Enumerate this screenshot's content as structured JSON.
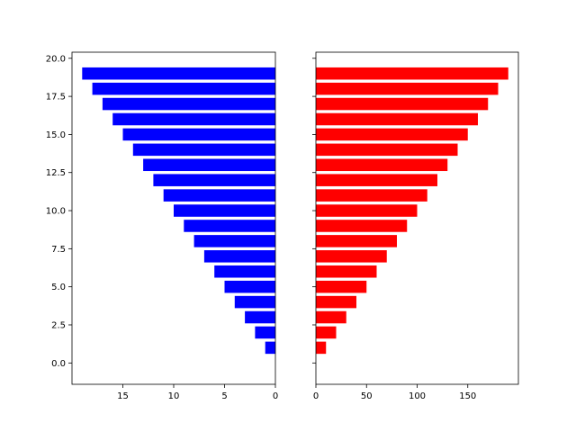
{
  "chart_data": [
    {
      "type": "bar",
      "orientation": "horizontal",
      "x_inverted": true,
      "color": "#0000ff",
      "y": [
        1,
        2,
        3,
        4,
        5,
        6,
        7,
        8,
        9,
        10,
        11,
        12,
        13,
        14,
        15,
        16,
        17,
        18,
        19
      ],
      "values": [
        1,
        2,
        3,
        4,
        5,
        6,
        7,
        8,
        9,
        10,
        11,
        12,
        13,
        14,
        15,
        16,
        17,
        18,
        19
      ],
      "bar_height": 0.8,
      "xlim": [
        0,
        20
      ],
      "ylim": [
        -1.4,
        20.4
      ],
      "xticks": [
        0,
        5,
        10,
        15
      ],
      "xtick_labels": [
        "0",
        "5",
        "10",
        "15"
      ],
      "yticks": [
        0,
        2.5,
        5,
        7.5,
        10,
        12.5,
        15,
        17.5,
        20
      ],
      "ytick_labels": [
        "0.0",
        "2.5",
        "5.0",
        "7.5",
        "10.0",
        "12.5",
        "15.0",
        "17.5",
        "20.0"
      ],
      "title": "",
      "xlabel": "",
      "ylabel": ""
    },
    {
      "type": "bar",
      "orientation": "horizontal",
      "x_inverted": false,
      "color": "#ff0000",
      "y": [
        1,
        2,
        3,
        4,
        5,
        6,
        7,
        8,
        9,
        10,
        11,
        12,
        13,
        14,
        15,
        16,
        17,
        18,
        19
      ],
      "values": [
        10,
        20,
        30,
        40,
        50,
        60,
        70,
        80,
        90,
        100,
        110,
        120,
        130,
        140,
        150,
        160,
        170,
        180,
        190
      ],
      "bar_height": 0.8,
      "xlim": [
        0,
        200
      ],
      "ylim": [
        -1.4,
        20.4
      ],
      "xticks": [
        0,
        50,
        100,
        150
      ],
      "xtick_labels": [
        "0",
        "50",
        "100",
        "150"
      ],
      "yticks": [
        0,
        2.5,
        5,
        7.5,
        10,
        12.5,
        15,
        17.5,
        20
      ],
      "ytick_labels": [],
      "title": "",
      "xlabel": "",
      "ylabel": ""
    }
  ]
}
